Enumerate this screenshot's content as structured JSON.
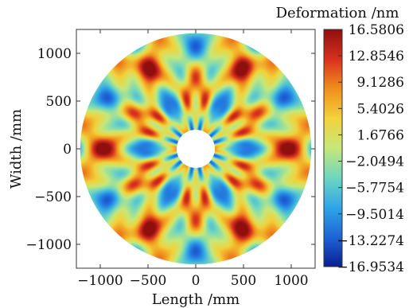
{
  "chart_data": {
    "type": "heatmap",
    "title": "",
    "xlabel": "Length /mm",
    "ylabel": "Width /mm",
    "xlim": [
      -1250,
      1250
    ],
    "ylim": [
      -1250,
      1250
    ],
    "xticks": [
      -1000,
      -500,
      0,
      500,
      1000
    ],
    "yticks": [
      -1000,
      -500,
      0,
      500,
      1000
    ],
    "xtick_labels": [
      "−1000",
      "−500",
      "0",
      "500",
      "1000"
    ],
    "ytick_labels": [
      "1000",
      "500",
      "0",
      "−500",
      "−1000"
    ],
    "aperture_outer_radius_mm": 1210,
    "aperture_inner_radius_mm": 200,
    "symmetry_fold": 6,
    "colorbar": {
      "title": "Deformation /nm",
      "min": -16.9534,
      "max": 16.5806,
      "tick_labels": [
        "16.5806",
        "12.8546",
        "9.1286",
        "5.4026",
        "1.6766",
        "−2.0494",
        "−5.7754",
        "−9.5014",
        "−13.2274",
        "−16.9534"
      ],
      "colormap": "jet",
      "colors": [
        "#0a1f8f",
        "#1f63d8",
        "#2fa6e8",
        "#6fd6c0",
        "#c6e87a",
        "#f2d23a",
        "#f08f1e",
        "#d8301e",
        "#8f0f0f"
      ]
    },
    "grid": false
  }
}
